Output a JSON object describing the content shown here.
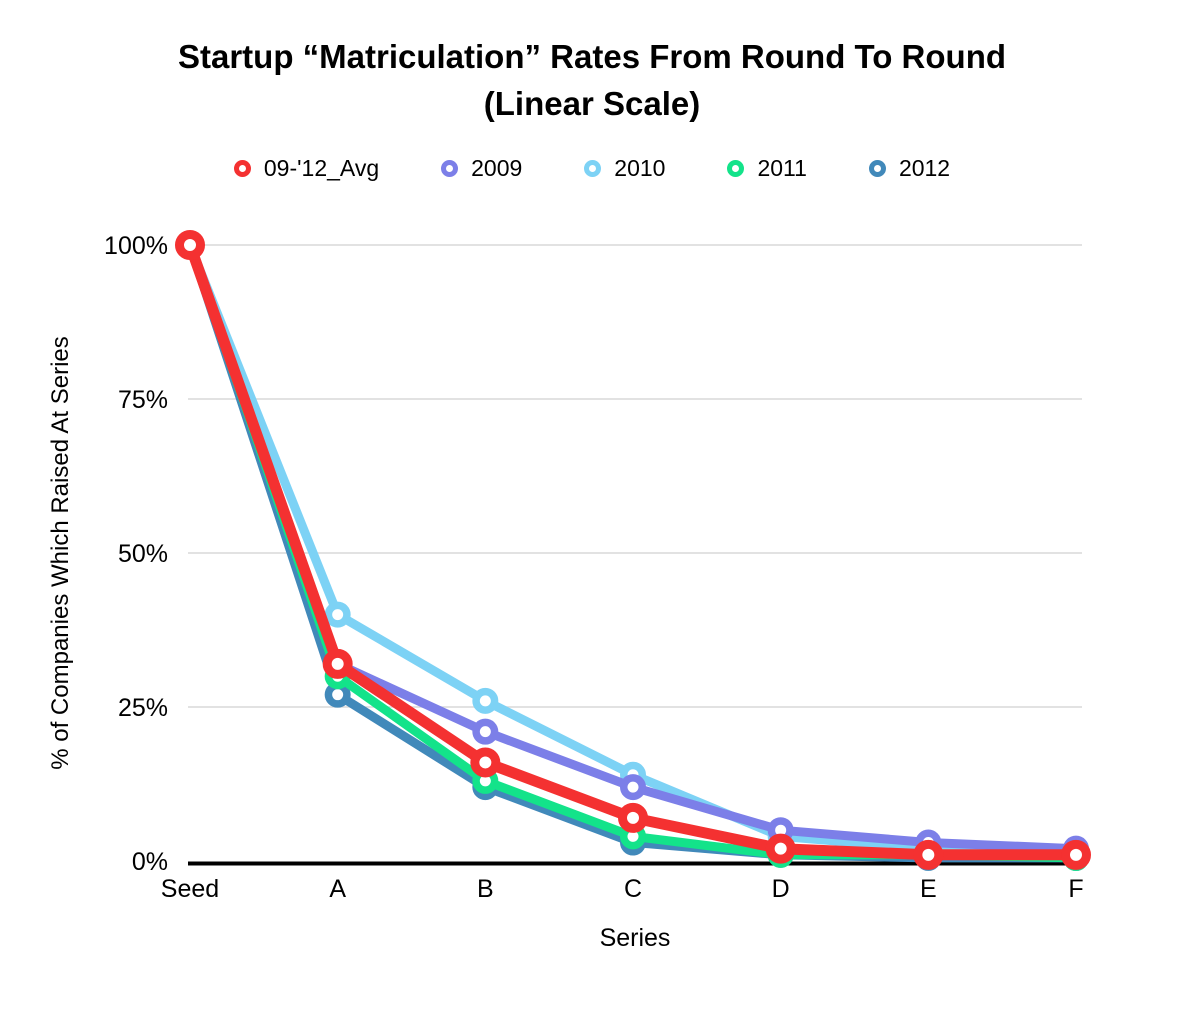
{
  "title": {
    "line1": "Startup “Matriculation” Rates From Round To Round",
    "line2": "(Linear Scale)"
  },
  "chart_data": {
    "type": "line",
    "categories": [
      "Seed",
      "A",
      "B",
      "C",
      "D",
      "E",
      "F"
    ],
    "series": [
      {
        "name": "09-'12_Avg",
        "color": "#F43131",
        "values": [
          100,
          32,
          16,
          7,
          2,
          1,
          1
        ]
      },
      {
        "name": "2009",
        "color": "#7C7FE8",
        "values": [
          100,
          32,
          21,
          12,
          5,
          3,
          2
        ]
      },
      {
        "name": "2010",
        "color": "#7DD2F5",
        "values": [
          100,
          40,
          26,
          14,
          4,
          2,
          1.5
        ]
      },
      {
        "name": "2011",
        "color": "#13E38A",
        "values": [
          100,
          30,
          13,
          4,
          1,
          1,
          0.5
        ]
      },
      {
        "name": "2012",
        "color": "#4189BA",
        "values": [
          100,
          27,
          12,
          3,
          1,
          0.5,
          0.5
        ]
      }
    ],
    "draw_order": [
      "2012",
      "2010",
      "2009",
      "2011",
      "09-'12_Avg"
    ],
    "emphasized_series": "09-'12_Avg",
    "xlabel": "Series",
    "ylabel": "% of Companies Which Raised At Series",
    "y_ticks": [
      {
        "value": 0,
        "label": "0%"
      },
      {
        "value": 25,
        "label": "25%"
      },
      {
        "value": 50,
        "label": "50%"
      },
      {
        "value": 75,
        "label": "75%"
      },
      {
        "value": 100,
        "label": "100%"
      }
    ],
    "ylim": [
      0,
      100
    ],
    "grid": true,
    "legend_position": "top",
    "axis_color": "#000000",
    "grid_color": "#d9d9d9"
  }
}
